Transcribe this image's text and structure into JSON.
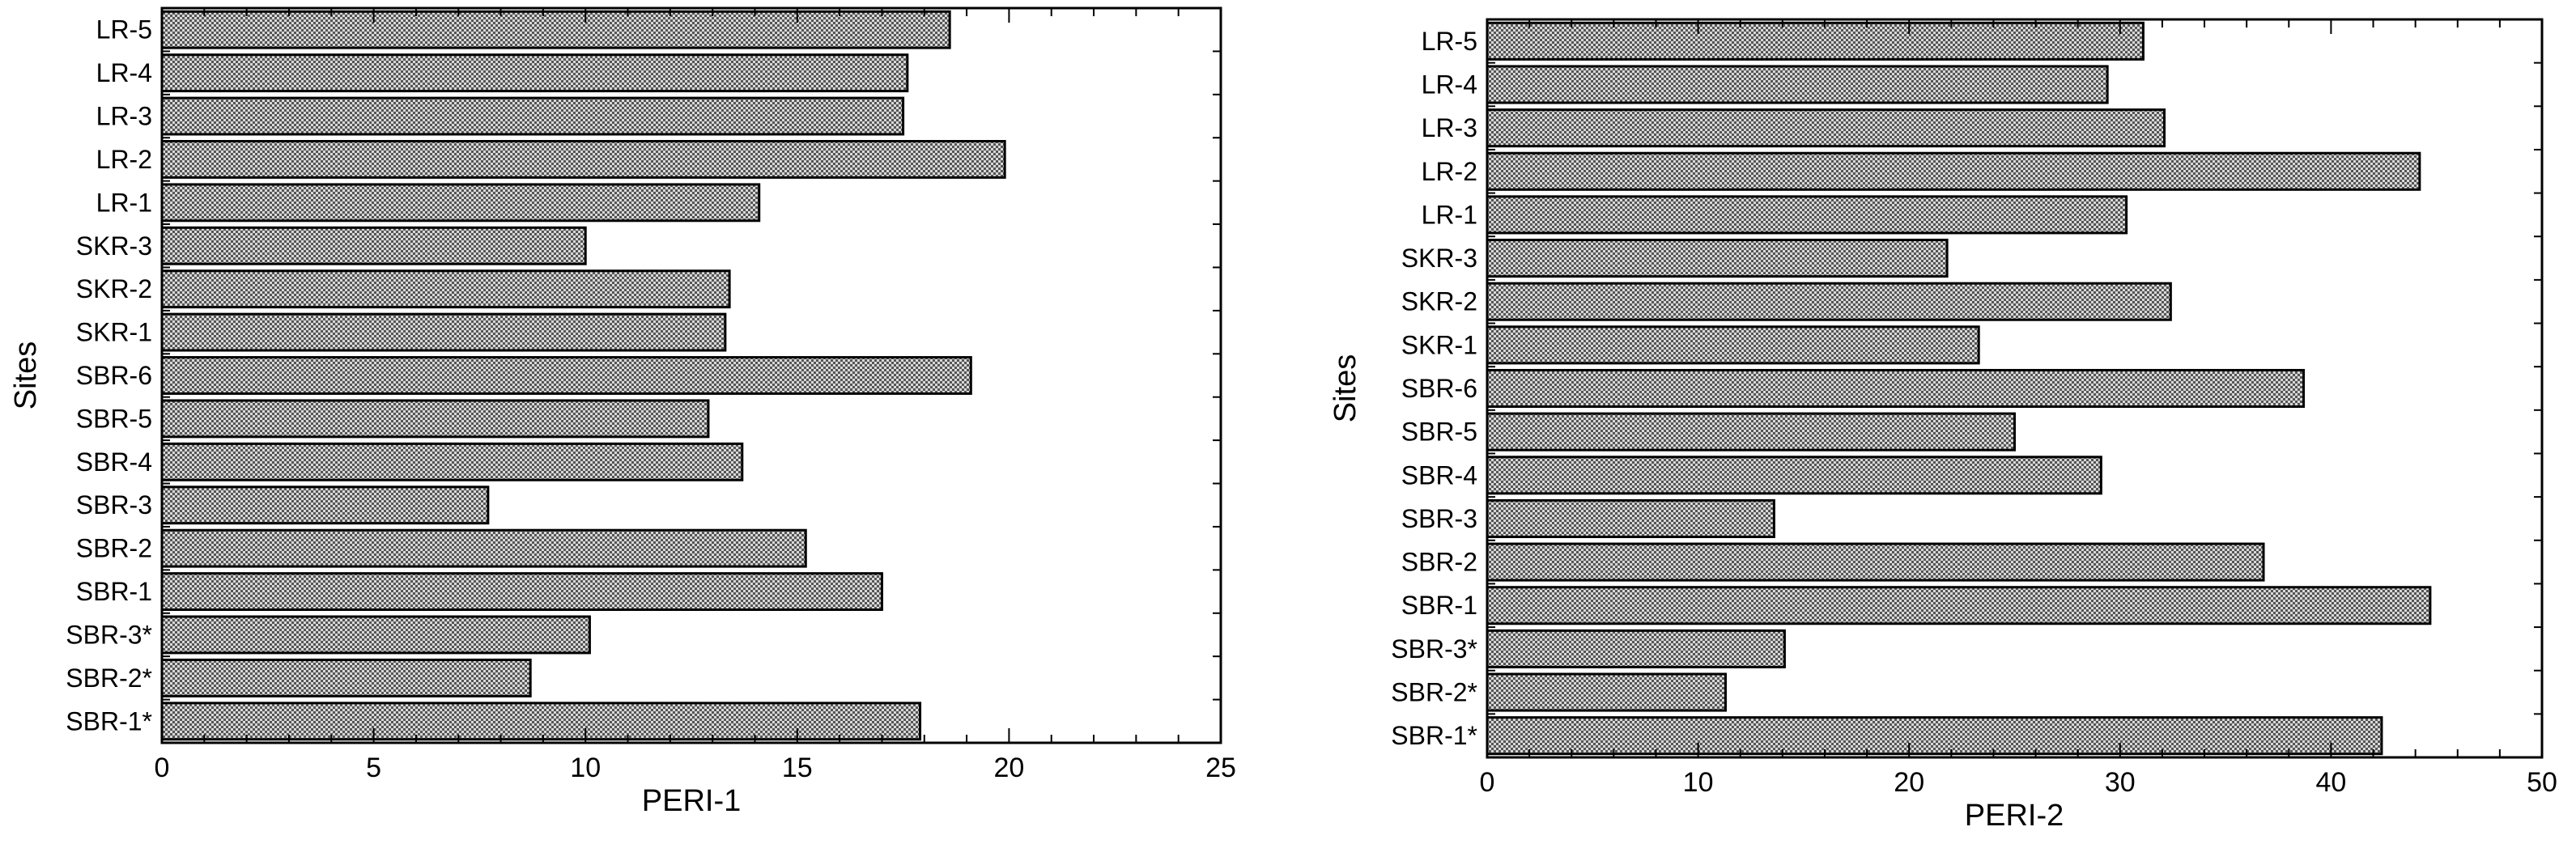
{
  "chart_data": [
    {
      "type": "bar",
      "orientation": "horizontal",
      "categories": [
        "SBR-1*",
        "SBR-2*",
        "SBR-3*",
        "SBR-1",
        "SBR-2",
        "SBR-3",
        "SBR-4",
        "SBR-5",
        "SBR-6",
        "SKR-1",
        "SKR-2",
        "SKR-3",
        "LR-1",
        "LR-2",
        "LR-3",
        "LR-4",
        "LR-5"
      ],
      "values": [
        17.9,
        8.7,
        10.1,
        17.0,
        15.2,
        7.7,
        13.7,
        12.9,
        19.1,
        13.3,
        13.4,
        10.0,
        14.1,
        19.9,
        17.5,
        17.6,
        18.6
      ],
      "title": "",
      "xlabel": "PERI-1",
      "ylabel": "Sites",
      "xlim": [
        0,
        25
      ],
      "xticks": [
        0,
        5,
        10,
        15,
        20,
        25
      ],
      "grid": false,
      "bar_fill": "#b0b0b0"
    },
    {
      "type": "bar",
      "orientation": "horizontal",
      "categories": [
        "SBR-1*",
        "SBR-2*",
        "SBR-3*",
        "SBR-1",
        "SBR-2",
        "SBR-3",
        "SBR-4",
        "SBR-5",
        "SBR-6",
        "SKR-1",
        "SKR-2",
        "SKR-3",
        "LR-1",
        "LR-2",
        "LR-3",
        "LR-4",
        "LR-5"
      ],
      "values": [
        42.4,
        11.3,
        14.1,
        44.7,
        36.8,
        13.6,
        29.1,
        25.0,
        38.7,
        23.3,
        32.4,
        21.8,
        30.3,
        44.2,
        32.1,
        29.4,
        31.1
      ],
      "title": "",
      "xlabel": "PERI-2",
      "ylabel": "Sites",
      "xlim": [
        0,
        50
      ],
      "xticks": [
        0,
        10,
        20,
        30,
        40,
        50
      ],
      "grid": false,
      "bar_fill": "#b0b0b0"
    }
  ]
}
